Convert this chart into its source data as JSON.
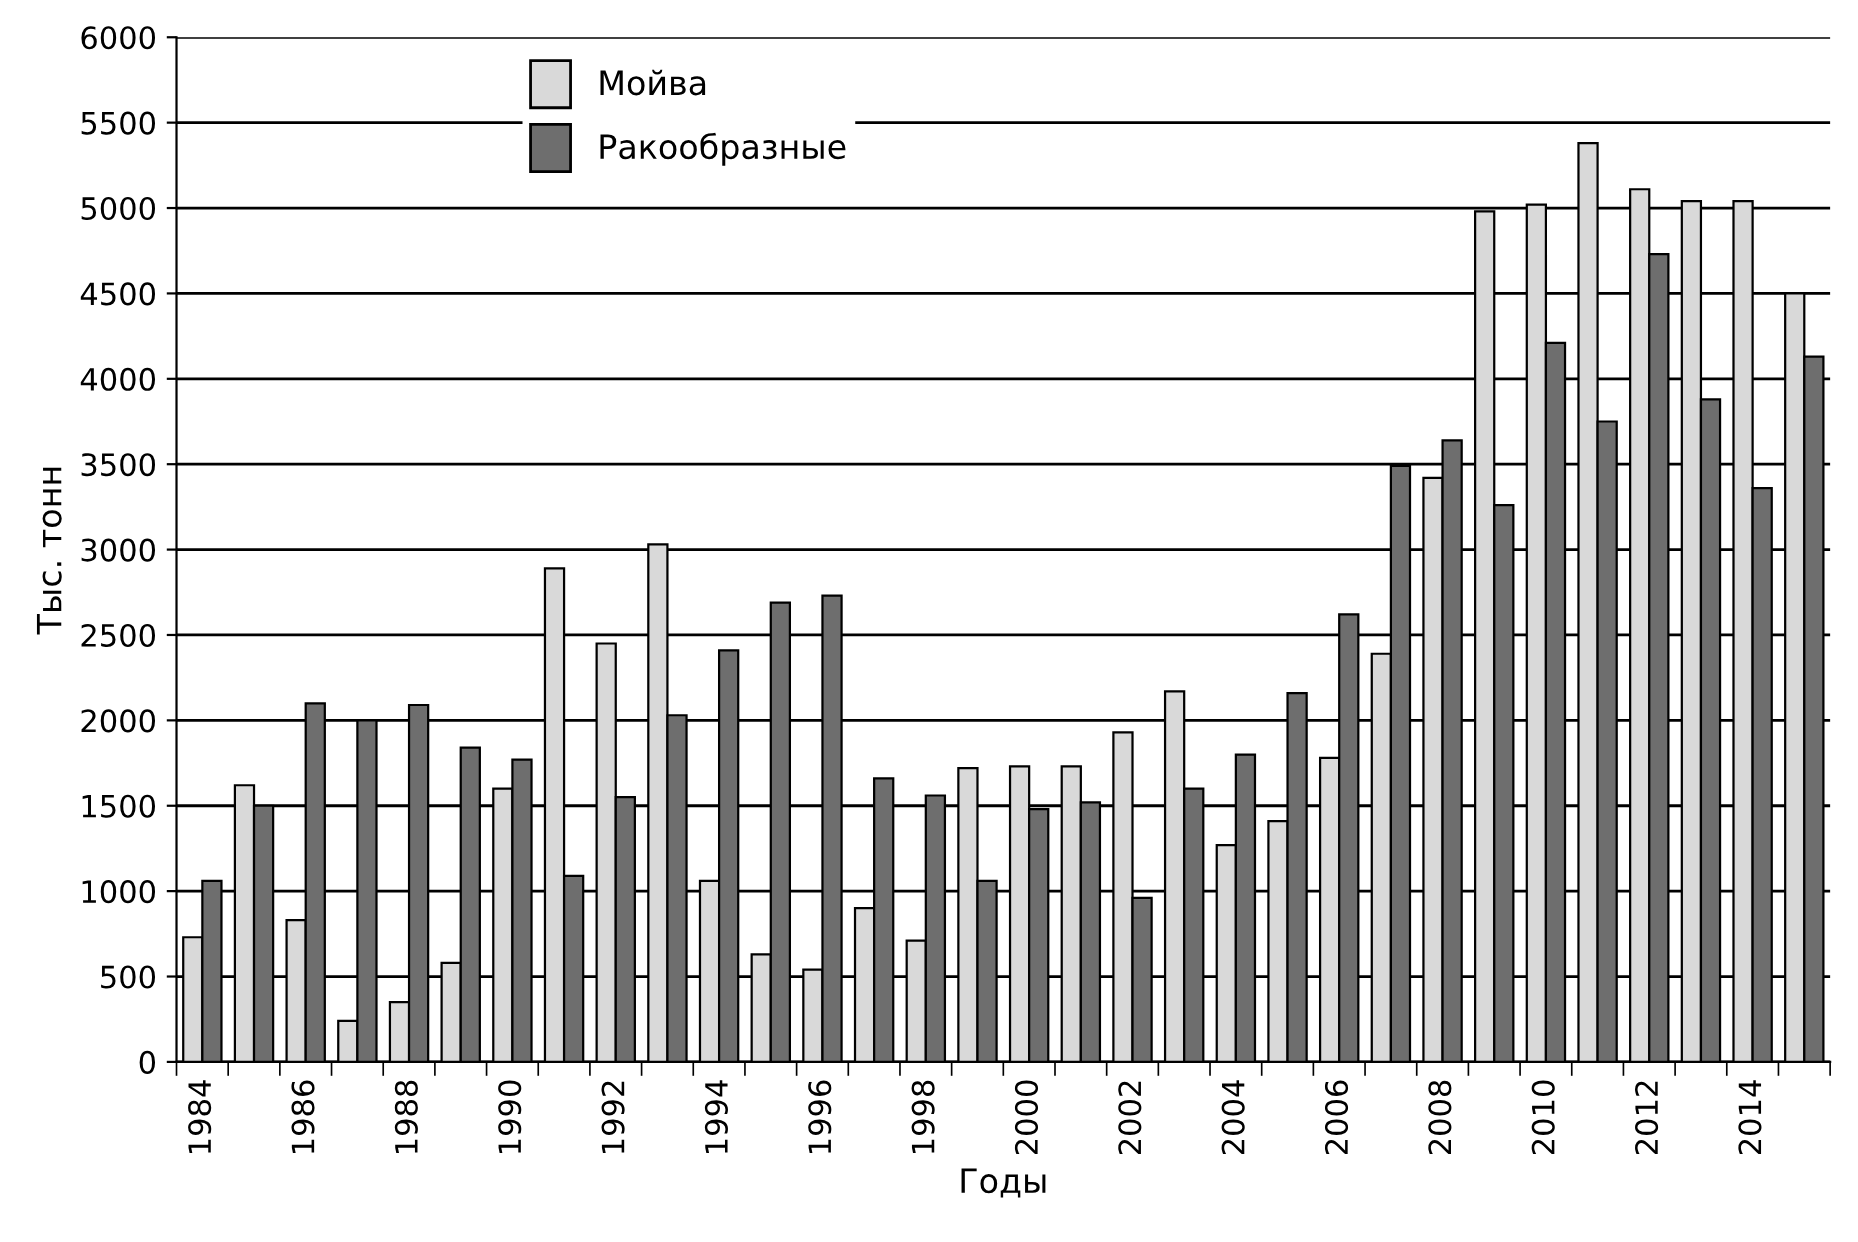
{
  "chart_data": {
    "type": "bar",
    "xlabel": "Годы",
    "ylabel": "Тыс. тонн",
    "categories": [
      "1984",
      null,
      "1986",
      null,
      "1988",
      null,
      "1990",
      null,
      "1992",
      null,
      "1994",
      null,
      "1996",
      null,
      "1998",
      null,
      "2000",
      null,
      "2002",
      null,
      "2004",
      null,
      "2006",
      null,
      "2008",
      null,
      "2010",
      null,
      "2012",
      null,
      "2014",
      null
    ],
    "series": [
      {
        "name": "Мойва",
        "color": "#d9d9d9",
        "values": [
          730,
          1620,
          830,
          240,
          350,
          580,
          1600,
          2890,
          2450,
          3030,
          1060,
          630,
          540,
          900,
          710,
          1720,
          1730,
          1730,
          1930,
          2170,
          1270,
          1410,
          1780,
          2390,
          3420,
          4980,
          5020,
          5380,
          5110,
          5040,
          5040,
          4500
        ]
      },
      {
        "name": "Ракообразные",
        "color": "#6e6e6e",
        "values": [
          1060,
          1500,
          2100,
          2000,
          2090,
          1840,
          1770,
          1090,
          1550,
          2030,
          2410,
          2690,
          2730,
          1660,
          1560,
          1060,
          1480,
          1520,
          960,
          1600,
          1800,
          2160,
          2620,
          3490,
          3640,
          3260,
          4210,
          3750,
          4730,
          3880,
          3360,
          4130
        ]
      }
    ],
    "ylim": [
      0,
      6000
    ],
    "yticks": [
      0,
      500,
      1000,
      1500,
      2000,
      2500,
      3000,
      3500,
      4000,
      4500,
      5000,
      5500,
      6000
    ],
    "grid": "y",
    "legend": "top left"
  }
}
